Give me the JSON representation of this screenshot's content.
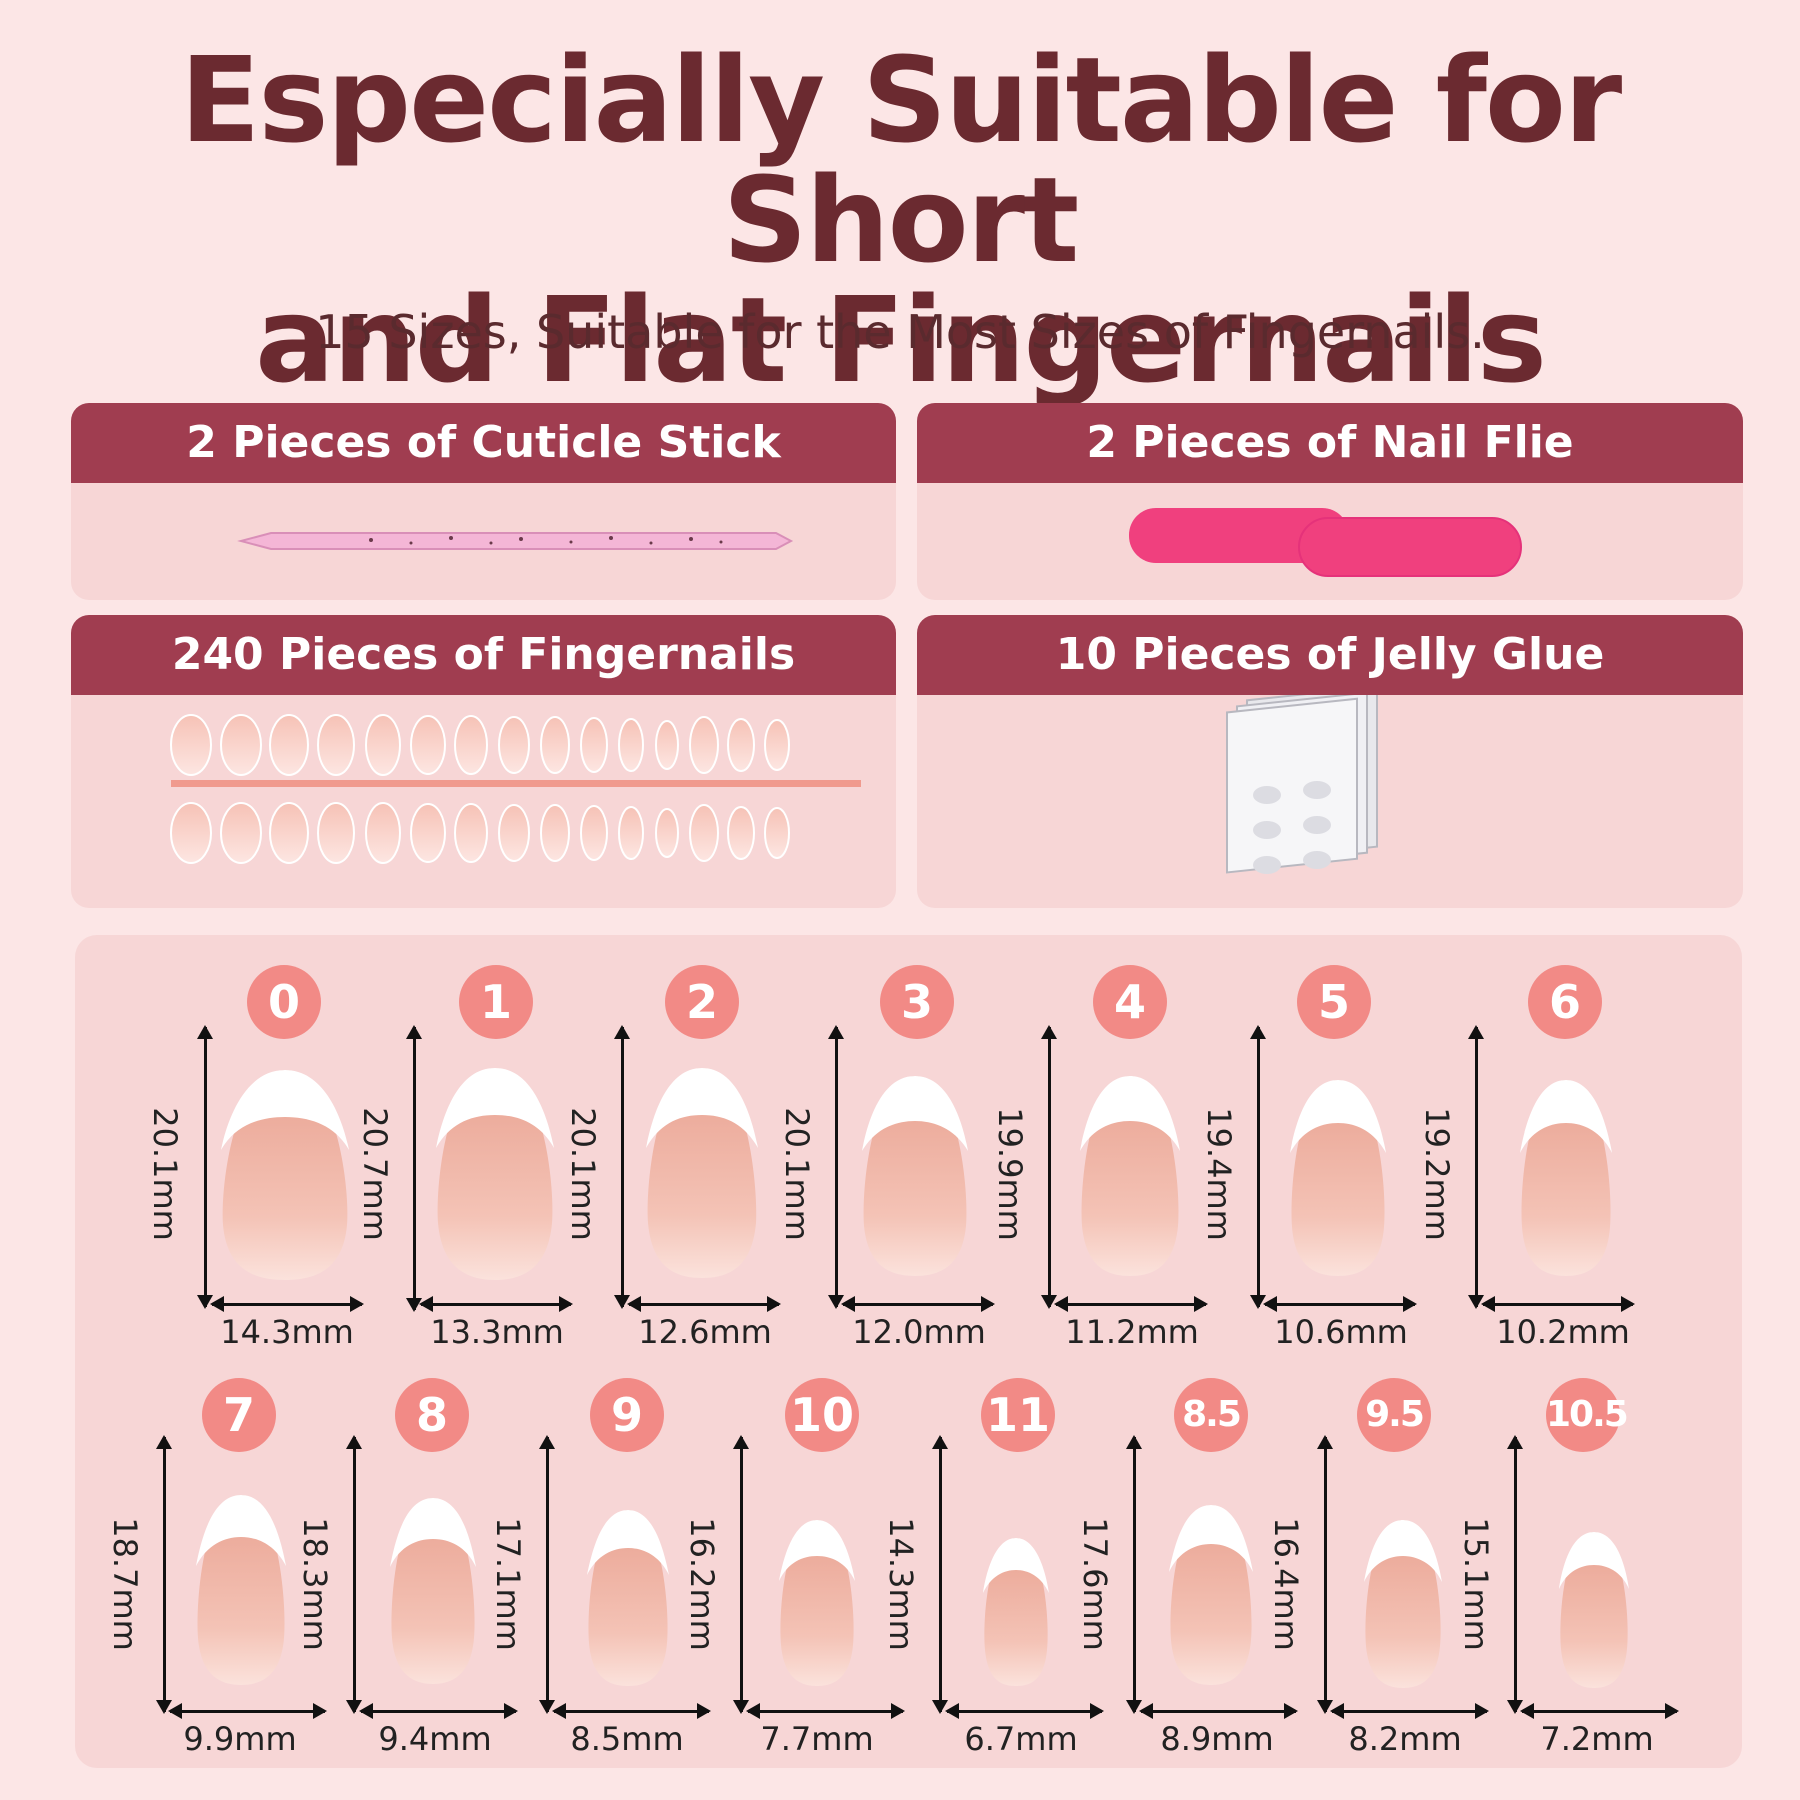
{
  "title_line1": "Especially Suitable for Short",
  "title_line2": "and Flat Fingernails",
  "subtitle": "15 Sizes, Suitable for the Most Sizes of Fingernails.",
  "cards": {
    "cuticle": "2 Pieces of Cuticle Stick",
    "file": "2 Pieces of Nail Flie",
    "nails": "240 Pieces of Fingernails",
    "glue": "10 Pieces of Jelly Glue"
  },
  "colors": {
    "title": "#6b2a30",
    "header_bar": "#a03d50",
    "badge": "#f28a86",
    "nail_file": "#f0407e"
  },
  "sizes_row1": [
    {
      "label": "0",
      "length": "20.1mm",
      "width": "14.3mm"
    },
    {
      "label": "1",
      "length": "20.7mm",
      "width": "13.3mm"
    },
    {
      "label": "2",
      "length": "20.1mm",
      "width": "12.6mm"
    },
    {
      "label": "3",
      "length": "20.1mm",
      "width": "12.0mm"
    },
    {
      "label": "4",
      "length": "19.9mm",
      "width": "11.2mm"
    },
    {
      "label": "5",
      "length": "19.4mm",
      "width": "10.6mm"
    },
    {
      "label": "6",
      "length": "19.2mm",
      "width": "10.2mm"
    }
  ],
  "sizes_row2": [
    {
      "label": "7",
      "length": "18.7mm",
      "width": "9.9mm"
    },
    {
      "label": "8",
      "length": "18.3mm",
      "width": "9.4mm"
    },
    {
      "label": "9",
      "length": "17.1mm",
      "width": "8.5mm"
    },
    {
      "label": "10",
      "length": "16.2mm",
      "width": "7.7mm"
    },
    {
      "label": "11",
      "length": "14.3mm",
      "width": "6.7mm"
    },
    {
      "label": "8.5",
      "length": "17.6mm",
      "width": "8.9mm"
    },
    {
      "label": "9.5",
      "length": "16.4mm",
      "width": "8.2mm"
    },
    {
      "label": "10.5",
      "length": "15.1mm",
      "width": "7.2mm"
    }
  ]
}
